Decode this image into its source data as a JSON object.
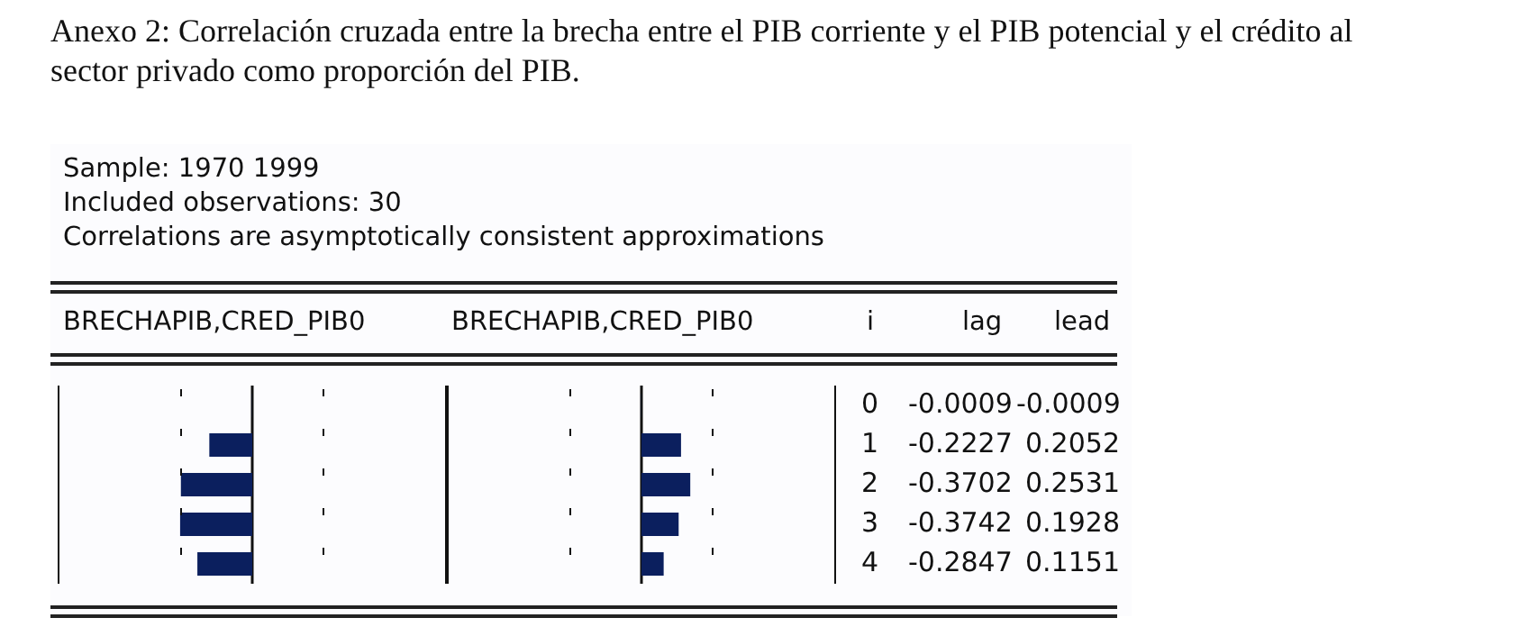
{
  "chart_data": [
    {
      "type": "bar",
      "orientation": "horizontal",
      "title": "Anexo 2: Correlación cruzada entre la brecha entre el PIB corriente y el PIB potencial y el crédito al sector privado como proporción del PIB.",
      "annotations": [
        "Sample: 1970 1999",
        "Included observations: 30",
        "Correlations are asymptotically consistent approximations"
      ],
      "xlabel": "BRECHAPIB,CRED_PIB0",
      "categories": [
        "0",
        "1",
        "2",
        "3",
        "4"
      ],
      "series": [
        {
          "name": "lag",
          "color": "#0b1f5e",
          "values": [
            -0.0009,
            -0.2227,
            -0.3702,
            -0.3742,
            -0.2847
          ]
        }
      ],
      "xlim": [
        -1,
        1
      ],
      "tick_labels": false,
      "data_labels": true,
      "legend": false,
      "ref_lines": [
        {
          "axis": "x",
          "value": -0.3651,
          "line_style": "dashed"
        },
        {
          "axis": "x",
          "value": 0.3651,
          "line_style": "dashed"
        }
      ]
    },
    {
      "type": "bar",
      "orientation": "horizontal",
      "annotations": [
        "i"
      ],
      "xlabel": "BRECHAPIB,CRED_PIB0",
      "categories": [
        "0",
        "1",
        "2",
        "3",
        "4"
      ],
      "series": [
        {
          "name": "lead",
          "color": "#0b1f5e",
          "values": [
            -0.0009,
            0.2052,
            0.2531,
            0.1928,
            0.1151
          ]
        }
      ],
      "xlim": [
        -1,
        1
      ],
      "tick_labels": false,
      "data_labels": true,
      "legend": false,
      "ref_lines": [
        {
          "axis": "x",
          "value": -0.3651,
          "line_style": "dashed"
        },
        {
          "axis": "x",
          "value": 0.3651,
          "line_style": "dashed"
        }
      ]
    }
  ]
}
